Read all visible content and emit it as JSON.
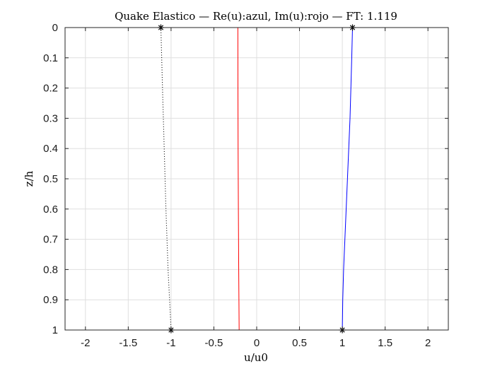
{
  "chart_data": {
    "type": "line",
    "title": "Quake Elastico — Re(u):azul, Im(u):rojo — FT: 1.119",
    "xlabel": "u/u0",
    "ylabel": "z/h",
    "xlim": [
      -2.238,
      2.238
    ],
    "ylim": [
      0,
      1
    ],
    "y_reversed": true,
    "grid": true,
    "x_ticks": [
      -2,
      -1.5,
      -1,
      -0.5,
      0,
      0.5,
      1,
      1.5,
      2
    ],
    "x_tick_labels": [
      "-2",
      "-1.5",
      "-1",
      "-0.5",
      "0",
      "0.5",
      "1",
      "1.5",
      "2"
    ],
    "y_ticks": [
      0,
      0.1,
      0.2,
      0.3,
      0.4,
      0.5,
      0.6,
      0.7,
      0.8,
      0.9,
      1
    ],
    "y_tick_labels": [
      "0",
      "0.1",
      "0.2",
      "0.3",
      "0.4",
      "0.5",
      "0.6",
      "0.7",
      "0.8",
      "0.9",
      "1"
    ],
    "series": [
      {
        "color": "#0000ff",
        "style": "solid",
        "points": [
          [
            1.119,
            0
          ],
          [
            1.11,
            0.1
          ],
          [
            1.1,
            0.2
          ],
          [
            1.09,
            0.3
          ],
          [
            1.075,
            0.4
          ],
          [
            1.06,
            0.5
          ],
          [
            1.045,
            0.6
          ],
          [
            1.03,
            0.7
          ],
          [
            1.015,
            0.8
          ],
          [
            1.005,
            0.9
          ],
          [
            1.0,
            1.0
          ]
        ]
      },
      {
        "color": "#ff0000",
        "style": "solid",
        "points": [
          [
            -0.22,
            0
          ],
          [
            -0.219,
            0.2
          ],
          [
            -0.217,
            0.4
          ],
          [
            -0.214,
            0.6
          ],
          [
            -0.21,
            0.8
          ],
          [
            -0.205,
            1.0
          ]
        ]
      },
      {
        "color": "#000000",
        "style": "dotted",
        "points": [
          [
            -1.119,
            0
          ],
          [
            -1.1,
            0.2
          ],
          [
            -1.08,
            0.4
          ],
          [
            -1.06,
            0.6
          ],
          [
            -1.035,
            0.8
          ],
          [
            -1.0,
            1.0
          ]
        ]
      }
    ],
    "markers": [
      {
        "x": -1.119,
        "y": 0
      },
      {
        "x": 1.119,
        "y": 0
      },
      {
        "x": -1.0,
        "y": 1
      },
      {
        "x": 1.0,
        "y": 1
      }
    ]
  }
}
